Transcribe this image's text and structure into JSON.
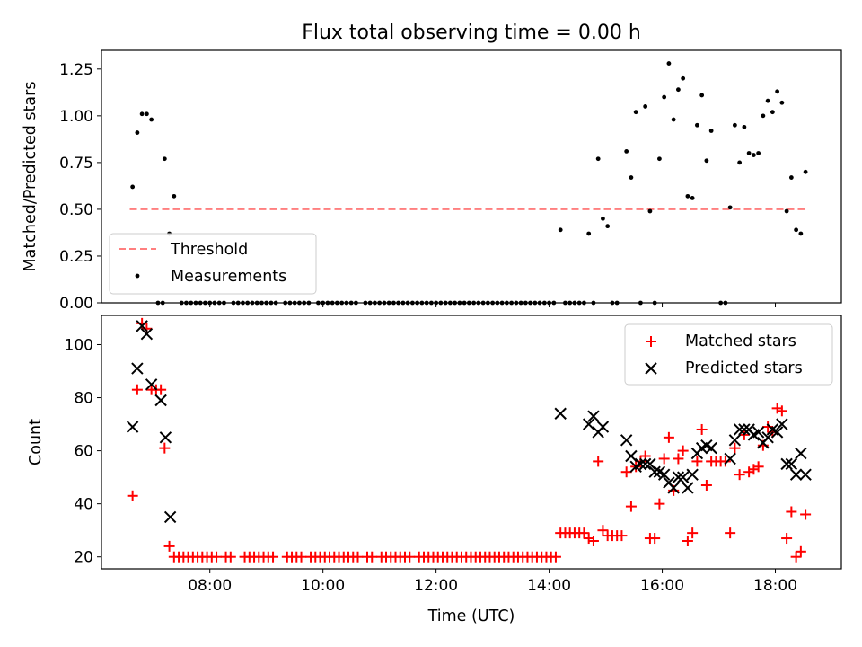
{
  "figure": {
    "title": "Flux total observing time = 0.00 h"
  },
  "chart_data": [
    {
      "type": "scatter",
      "title": "Flux total observing time = 0.00 h",
      "xlabel": "",
      "ylabel": "Matched/Predicted stars",
      "xlim": [
        "06:05",
        "19:10"
      ],
      "ylim": [
        0,
        1.35
      ],
      "xticks": [],
      "yticks": [
        0.0,
        0.25,
        0.5,
        0.75,
        1.0,
        1.25
      ],
      "ytick_labels": [
        "0.00",
        "0.25",
        "0.50",
        "0.75",
        "1.00",
        "1.25"
      ],
      "grid": false,
      "legend_position": "lower-left",
      "series": [
        {
          "name": "Threshold",
          "style": "dashed-line",
          "color": "#ff7f7f",
          "points": [
            [
              "06:35",
              0.5
            ],
            [
              "18:35",
              0.5
            ]
          ]
        },
        {
          "name": "Measurements",
          "style": "dot",
          "color": "#000000",
          "points": [
            [
              "06:38",
              0.62
            ],
            [
              "06:43",
              0.91
            ],
            [
              "06:48",
              1.01
            ],
            [
              "06:53",
              1.01
            ],
            [
              "06:58",
              0.98
            ],
            [
              "07:12",
              0.77
            ],
            [
              "07:17",
              0.37
            ],
            [
              "07:22",
              0.57
            ],
            [
              "14:12",
              0.39
            ],
            [
              "14:42",
              0.37
            ],
            [
              "14:52",
              0.77
            ],
            [
              "14:57",
              0.45
            ],
            [
              "15:02",
              0.41
            ],
            [
              "15:22",
              0.81
            ],
            [
              "15:27",
              0.67
            ],
            [
              "15:32",
              1.02
            ],
            [
              "15:42",
              1.05
            ],
            [
              "15:47",
              0.49
            ],
            [
              "15:57",
              0.77
            ],
            [
              "16:02",
              1.1
            ],
            [
              "16:07",
              1.28
            ],
            [
              "16:12",
              0.98
            ],
            [
              "16:17",
              1.14
            ],
            [
              "16:22",
              1.2
            ],
            [
              "16:27",
              0.57
            ],
            [
              "16:32",
              0.56
            ],
            [
              "16:37",
              0.95
            ],
            [
              "16:42",
              1.11
            ],
            [
              "16:47",
              0.76
            ],
            [
              "16:52",
              0.92
            ],
            [
              "17:12",
              0.51
            ],
            [
              "17:17",
              0.95
            ],
            [
              "17:22",
              0.75
            ],
            [
              "17:27",
              0.94
            ],
            [
              "17:32",
              0.8
            ],
            [
              "17:37",
              0.79
            ],
            [
              "17:42",
              0.8
            ],
            [
              "17:47",
              1.0
            ],
            [
              "17:52",
              1.08
            ],
            [
              "17:57",
              1.02
            ],
            [
              "18:02",
              1.13
            ],
            [
              "18:07",
              1.07
            ],
            [
              "18:12",
              0.49
            ],
            [
              "18:17",
              0.67
            ],
            [
              "18:22",
              0.39
            ],
            [
              "18:27",
              0.37
            ],
            [
              "18:32",
              0.7
            ]
          ],
          "zero_points": [
            "07:05",
            "07:10",
            "07:30",
            "07:35",
            "07:40",
            "07:45",
            "07:50",
            "07:55",
            "08:00",
            "08:05",
            "08:10",
            "08:15",
            "08:25",
            "08:30",
            "08:35",
            "08:40",
            "08:45",
            "08:50",
            "08:55",
            "09:00",
            "09:05",
            "09:10",
            "09:20",
            "09:25",
            "09:30",
            "09:35",
            "09:40",
            "09:45",
            "09:55",
            "10:00",
            "10:05",
            "10:10",
            "10:15",
            "10:20",
            "10:25",
            "10:30",
            "10:35",
            "10:45",
            "10:50",
            "10:55",
            "11:00",
            "11:05",
            "11:10",
            "11:15",
            "11:20",
            "11:25",
            "11:30",
            "11:35",
            "11:40",
            "11:45",
            "11:50",
            "11:55",
            "12:00",
            "12:05",
            "12:10",
            "12:15",
            "12:20",
            "12:25",
            "12:30",
            "12:35",
            "12:40",
            "12:45",
            "12:50",
            "12:55",
            "13:00",
            "13:05",
            "13:10",
            "13:15",
            "13:20",
            "13:25",
            "13:30",
            "13:35",
            "13:40",
            "13:45",
            "13:50",
            "13:55",
            "14:00",
            "14:05",
            "14:17",
            "14:22",
            "14:27",
            "14:32",
            "14:37",
            "14:47",
            "15:07",
            "15:12",
            "15:37",
            "15:52",
            "17:02",
            "17:07"
          ]
        }
      ]
    },
    {
      "type": "scatter",
      "title": "",
      "xlabel": "Time (UTC)",
      "ylabel": "Count",
      "xlim": [
        "06:05",
        "19:10"
      ],
      "ylim": [
        15.5,
        111
      ],
      "xticks": [
        "08:00",
        "10:00",
        "12:00",
        "14:00",
        "16:00",
        "18:00"
      ],
      "xtick_labels": [
        "08:00",
        "10:00",
        "12:00",
        "14:00",
        "16:00",
        "18:00"
      ],
      "yticks": [
        20,
        40,
        60,
        80,
        100
      ],
      "ytick_labels": [
        "20",
        "40",
        "60",
        "80",
        "100"
      ],
      "grid": false,
      "legend_position": "upper-right",
      "series": [
        {
          "name": "Matched stars",
          "marker": "+",
          "color": "#ff0000",
          "points": [
            [
              "06:38",
              43
            ],
            [
              "06:43",
              83
            ],
            [
              "06:48",
              108
            ],
            [
              "06:53",
              106
            ],
            [
              "06:58",
              83
            ],
            [
              "07:03",
              83
            ],
            [
              "07:08",
              83
            ],
            [
              "07:12",
              61
            ],
            [
              "07:17",
              24
            ],
            [
              "07:22",
              20
            ],
            [
              "14:12",
              29
            ],
            [
              "14:17",
              29
            ],
            [
              "14:22",
              29
            ],
            [
              "14:27",
              29
            ],
            [
              "14:32",
              29
            ],
            [
              "14:37",
              29
            ],
            [
              "14:42",
              27
            ],
            [
              "14:47",
              26
            ],
            [
              "14:52",
              56
            ],
            [
              "14:57",
              30
            ],
            [
              "15:02",
              28
            ],
            [
              "15:07",
              28
            ],
            [
              "15:12",
              28
            ],
            [
              "15:17",
              28
            ],
            [
              "15:22",
              52
            ],
            [
              "15:27",
              39
            ],
            [
              "15:32",
              54
            ],
            [
              "15:37",
              56
            ],
            [
              "15:42",
              58
            ],
            [
              "15:47",
              27
            ],
            [
              "15:52",
              27
            ],
            [
              "15:57",
              40
            ],
            [
              "16:02",
              57
            ],
            [
              "16:07",
              65
            ],
            [
              "16:12",
              45
            ],
            [
              "16:17",
              57
            ],
            [
              "16:22",
              60
            ],
            [
              "16:27",
              26
            ],
            [
              "16:32",
              29
            ],
            [
              "16:37",
              56
            ],
            [
              "16:42",
              68
            ],
            [
              "16:47",
              47
            ],
            [
              "16:52",
              56
            ],
            [
              "16:57",
              56
            ],
            [
              "17:02",
              56
            ],
            [
              "17:07",
              56
            ],
            [
              "17:12",
              29
            ],
            [
              "17:17",
              61
            ],
            [
              "17:22",
              51
            ],
            [
              "17:27",
              66
            ],
            [
              "17:32",
              52
            ],
            [
              "17:37",
              53
            ],
            [
              "17:42",
              54
            ],
            [
              "17:47",
              62
            ],
            [
              "17:52",
              69
            ],
            [
              "17:57",
              67
            ],
            [
              "18:02",
              76
            ],
            [
              "18:07",
              75
            ],
            [
              "18:12",
              27
            ],
            [
              "18:17",
              37
            ],
            [
              "18:22",
              20
            ],
            [
              "18:27",
              22
            ],
            [
              "18:32",
              36
            ]
          ],
          "flat_points": [
            "07:27",
            "07:32",
            "07:37",
            "07:42",
            "07:47",
            "07:52",
            "07:57",
            "08:02",
            "08:07",
            "08:17",
            "08:22",
            "08:37",
            "08:42",
            "08:47",
            "08:52",
            "08:57",
            "09:02",
            "09:07",
            "09:22",
            "09:27",
            "09:32",
            "09:37",
            "09:47",
            "09:52",
            "09:57",
            "10:02",
            "10:07",
            "10:12",
            "10:17",
            "10:22",
            "10:27",
            "10:32",
            "10:37",
            "10:47",
            "10:52",
            "11:02",
            "11:07",
            "11:12",
            "11:17",
            "11:22",
            "11:27",
            "11:32",
            "11:42",
            "11:47",
            "11:52",
            "11:57",
            "12:02",
            "12:07",
            "12:12",
            "12:17",
            "12:22",
            "12:27",
            "12:32",
            "12:37",
            "12:42",
            "12:47",
            "12:52",
            "12:57",
            "13:02",
            "13:07",
            "13:12",
            "13:17",
            "13:22",
            "13:27",
            "13:32",
            "13:37",
            "13:42",
            "13:47",
            "13:52",
            "13:57",
            "14:02",
            "14:07"
          ],
          "flat_value": 20
        },
        {
          "name": "Predicted stars",
          "marker": "x",
          "color": "#000000",
          "points": [
            [
              "06:38",
              69
            ],
            [
              "06:43",
              91
            ],
            [
              "06:48",
              107
            ],
            [
              "06:53",
              104
            ],
            [
              "06:58",
              85
            ],
            [
              "07:08",
              79
            ],
            [
              "07:13",
              65
            ],
            [
              "07:18",
              35
            ],
            [
              "14:12",
              74
            ],
            [
              "14:42",
              70
            ],
            [
              "14:47",
              73
            ],
            [
              "14:52",
              67
            ],
            [
              "14:57",
              69
            ],
            [
              "15:22",
              64
            ],
            [
              "15:27",
              58
            ],
            [
              "15:32",
              54
            ],
            [
              "15:37",
              55
            ],
            [
              "15:42",
              55
            ],
            [
              "15:47",
              55
            ],
            [
              "15:52",
              52
            ],
            [
              "15:57",
              52
            ],
            [
              "16:02",
              51
            ],
            [
              "16:07",
              48
            ],
            [
              "16:12",
              46
            ],
            [
              "16:17",
              50
            ],
            [
              "16:22",
              50
            ],
            [
              "16:27",
              46
            ],
            [
              "16:32",
              51
            ],
            [
              "16:37",
              59
            ],
            [
              "16:42",
              61
            ],
            [
              "16:47",
              62
            ],
            [
              "16:52",
              61
            ],
            [
              "17:12",
              57
            ],
            [
              "17:17",
              64
            ],
            [
              "17:22",
              68
            ],
            [
              "17:27",
              68
            ],
            [
              "17:32",
              68
            ],
            [
              "17:37",
              66
            ],
            [
              "17:42",
              67
            ],
            [
              "17:47",
              63
            ],
            [
              "17:52",
              65
            ],
            [
              "17:57",
              68
            ],
            [
              "18:02",
              67
            ],
            [
              "18:07",
              70
            ],
            [
              "18:12",
              55
            ],
            [
              "18:17",
              55
            ],
            [
              "18:22",
              51
            ],
            [
              "18:27",
              59
            ],
            [
              "18:32",
              51
            ]
          ]
        }
      ]
    }
  ]
}
